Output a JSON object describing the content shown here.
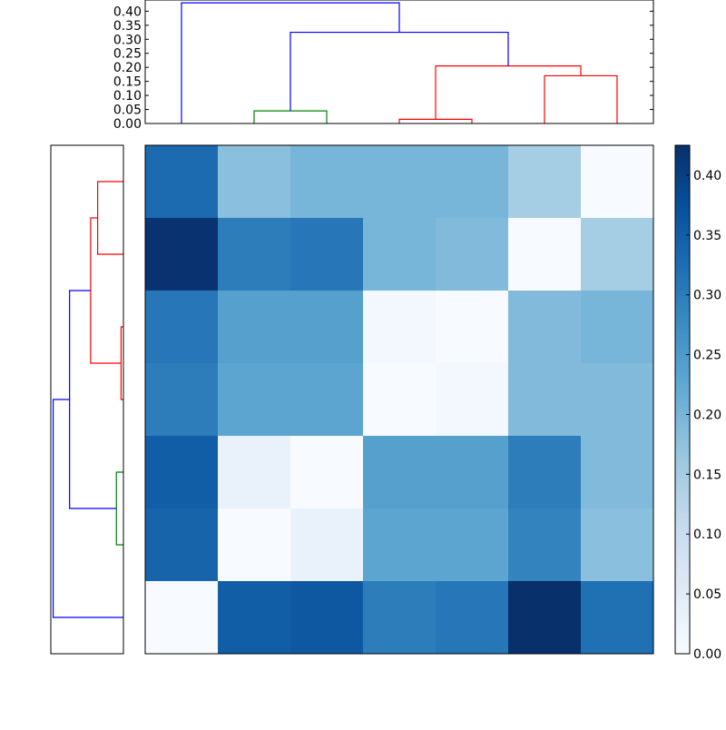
{
  "chart_data": [
    {
      "type": "dendrogram",
      "orientation": "top",
      "ylim": [
        0,
        0.44
      ],
      "yticks": [
        "0.00",
        "0.05",
        "0.10",
        "0.15",
        "0.20",
        "0.25",
        "0.30",
        "0.35",
        "0.40"
      ],
      "links": [
        {
          "color": "#008000",
          "x": [
            2,
            2,
            3,
            3
          ],
          "h": [
            0,
            0.045,
            0.045,
            0
          ]
        },
        {
          "color": "#ff0000",
          "x": [
            4,
            4,
            5,
            5
          ],
          "h": [
            0,
            0.015,
            0.015,
            0
          ]
        },
        {
          "color": "#ff0000",
          "x": [
            6,
            6,
            7,
            7
          ],
          "h": [
            0,
            0.17,
            0.17,
            0
          ]
        },
        {
          "color": "#ff0000",
          "x": [
            4.5,
            4.5,
            6.5,
            6.5
          ],
          "h": [
            0.015,
            0.205,
            0.205,
            0.17
          ]
        },
        {
          "color": "#0000ff",
          "x": [
            2.5,
            2.5,
            5.5,
            5.5
          ],
          "h": [
            0.045,
            0.325,
            0.325,
            0.205
          ]
        },
        {
          "color": "#0000ff",
          "x": [
            1,
            1,
            4,
            4
          ],
          "h": [
            0,
            0.43,
            0.43,
            0.325
          ]
        }
      ]
    },
    {
      "type": "dendrogram",
      "orientation": "left",
      "links": [
        {
          "color": "#ff0000",
          "y": [
            1,
            1,
            2,
            2
          ],
          "h": [
            0,
            0.055,
            0.055,
            0
          ]
        },
        {
          "color": "#ff0000",
          "y": [
            3,
            3,
            4,
            4
          ],
          "h": [
            0,
            0.005,
            0.005,
            0
          ]
        },
        {
          "color": "#ff0000",
          "y": [
            1.5,
            1.5,
            3.5,
            3.5
          ],
          "h": [
            0.055,
            0.07,
            0.07,
            0.005
          ]
        },
        {
          "color": "#008000",
          "y": [
            5,
            5,
            6,
            6
          ],
          "h": [
            0,
            0.015,
            0.015,
            0
          ]
        },
        {
          "color": "#0000ff",
          "y": [
            2.5,
            2.5,
            5.5,
            5.5
          ],
          "h": [
            0.07,
            0.115,
            0.115,
            0.015
          ]
        },
        {
          "color": "#0000ff",
          "y": [
            4,
            4,
            7,
            7
          ],
          "h": [
            0.115,
            0.15,
            0.15,
            0
          ]
        }
      ],
      "hmax": 0.155
    },
    {
      "type": "heatmap",
      "vmin": 0,
      "vmax": 0.425,
      "rows": 7,
      "cols": 7,
      "values": [
        [
          0.33,
          0.18,
          0.2,
          0.2,
          0.2,
          0.15,
          0.0
        ],
        [
          0.42,
          0.3,
          0.31,
          0.2,
          0.19,
          0.0,
          0.15
        ],
        [
          0.31,
          0.24,
          0.24,
          0.01,
          0.0,
          0.19,
          0.2
        ],
        [
          0.3,
          0.23,
          0.23,
          0.0,
          0.01,
          0.19,
          0.19
        ],
        [
          0.35,
          0.03,
          0.0,
          0.24,
          0.24,
          0.3,
          0.19
        ],
        [
          0.34,
          0.0,
          0.03,
          0.23,
          0.23,
          0.29,
          0.18
        ],
        [
          0.0,
          0.35,
          0.36,
          0.3,
          0.31,
          0.43,
          0.32
        ]
      ],
      "colormap": "Blues",
      "colorbar": {
        "ticks": [
          "0.00",
          "0.05",
          "0.10",
          "0.15",
          "0.20",
          "0.25",
          "0.30",
          "0.35",
          "0.40"
        ],
        "tick_values": [
          0,
          0.05,
          0.1,
          0.15,
          0.2,
          0.25,
          0.3,
          0.35,
          0.4
        ]
      }
    }
  ]
}
